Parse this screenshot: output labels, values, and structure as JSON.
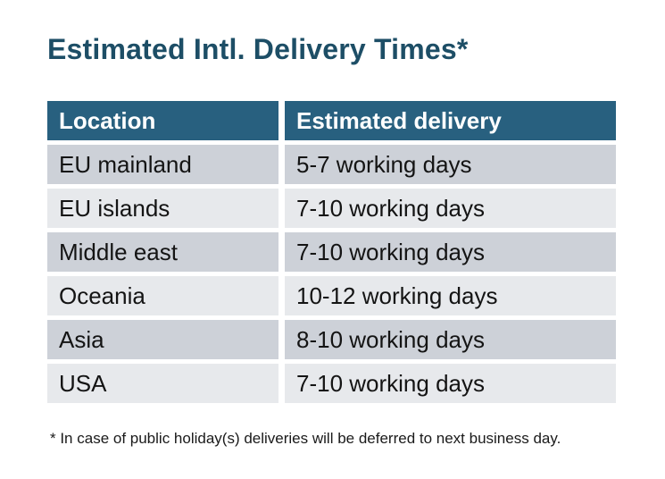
{
  "page": {
    "title": "Estimated Intl. Delivery Times*",
    "footnote": "* In case of public holiday(s) deliveries will be deferred to next business day."
  },
  "table": {
    "columns": [
      "Location",
      "Estimated delivery"
    ],
    "rows": [
      {
        "location": "EU mainland",
        "delivery": "5-7 working days"
      },
      {
        "location": "EU islands",
        "delivery": "7-10 working days"
      },
      {
        "location": "Middle east",
        "delivery": "7-10 working days"
      },
      {
        "location": "Oceania",
        "delivery": "10-12 working days"
      },
      {
        "location": "Asia",
        "delivery": "8-10 working days"
      },
      {
        "location": "USA",
        "delivery": "7-10 working days"
      }
    ]
  },
  "colors": {
    "header_bg": "#28607f",
    "header_text": "#ffffff",
    "title_text": "#1d4e66",
    "row_dark_bg": "#cdd1d8",
    "row_light_bg": "#e7e9ec",
    "cell_text": "#141414",
    "footnote_text": "#1a1a1a"
  }
}
